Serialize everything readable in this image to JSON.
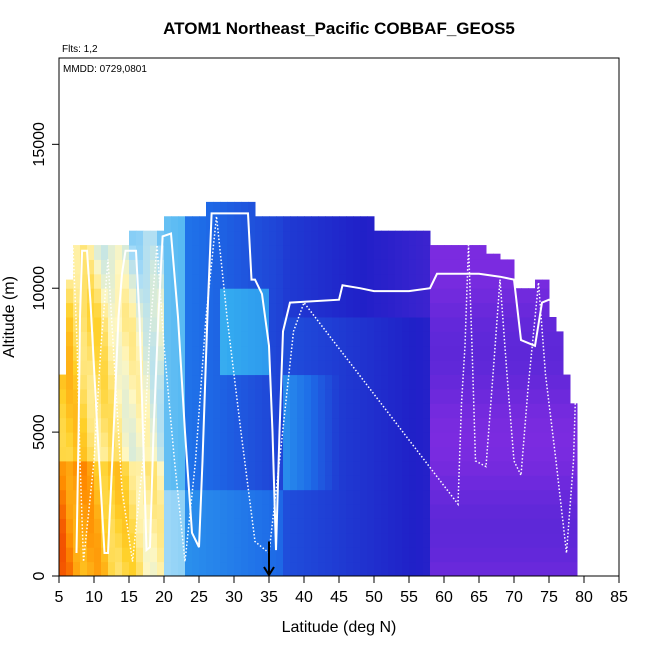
{
  "chart_data": {
    "type": "heatmap",
    "title": "ATOM1 Northeast_Pacific COBBAF_GEOS5",
    "subtitle_flights": "Flts: 1,2",
    "subtitle_dates": "MMDD: 0729,0801",
    "xlabel": "Latitude (deg N)",
    "ylabel": "Altitude (m)",
    "xlim": [
      5,
      85
    ],
    "ylim": [
      0,
      18000
    ],
    "xticks": [
      5,
      10,
      15,
      20,
      25,
      30,
      35,
      40,
      45,
      50,
      55,
      60,
      65,
      70,
      75,
      80,
      85
    ],
    "yticks": [
      0,
      5000,
      10000,
      15000
    ],
    "arrow_marker_latitude": 35,
    "color_scale": [
      "#7b2be0",
      "#2020c8",
      "#1e6ee8",
      "#33aaf0",
      "#a8dcf8",
      "#fff7c0",
      "#ffd028",
      "#ff8c00",
      "#e81c00"
    ],
    "profile_column_tops": [
      {
        "lat_range": [
          5,
          6
        ],
        "top": 7000
      },
      {
        "lat_range": [
          6,
          7
        ],
        "top": 10300
      },
      {
        "lat_range": [
          7,
          14
        ],
        "top": 11500
      },
      {
        "lat_range": [
          14,
          15
        ],
        "top": 11500
      },
      {
        "lat_range": [
          15,
          18
        ],
        "top": 12000
      },
      {
        "lat_range": [
          18,
          20
        ],
        "top": 12000
      },
      {
        "lat_range": [
          20,
          26
        ],
        "top": 12500
      },
      {
        "lat_range": [
          26,
          33
        ],
        "top": 13000
      },
      {
        "lat_range": [
          33,
          37
        ],
        "top": 12500
      },
      {
        "lat_range": [
          37,
          40
        ],
        "top": 12500
      },
      {
        "lat_range": [
          40,
          50
        ],
        "top": 12500
      },
      {
        "lat_range": [
          50,
          58
        ],
        "top": 12000
      },
      {
        "lat_range": [
          58,
          66
        ],
        "top": 11500
      },
      {
        "lat_range": [
          66,
          68
        ],
        "top": 11200
      },
      {
        "lat_range": [
          68,
          70
        ],
        "top": 11000
      },
      {
        "lat_range": [
          70,
          73
        ],
        "top": 10000
      },
      {
        "lat_range": [
          73,
          75
        ],
        "top": 10300
      },
      {
        "lat_range": [
          75,
          76
        ],
        "top": 9000
      },
      {
        "lat_range": [
          76,
          77
        ],
        "top": 8500
      },
      {
        "lat_range": [
          77,
          78
        ],
        "top": 7000
      },
      {
        "lat_range": [
          78,
          79
        ],
        "top": 6000
      }
    ],
    "flight_track_solid": [
      [
        7.5,
        800
      ],
      [
        7.8,
        5000
      ],
      [
        8.0,
        9000
      ],
      [
        8.3,
        11300
      ],
      [
        9.0,
        11300
      ],
      [
        9.5,
        9500
      ],
      [
        10.5,
        5000
      ],
      [
        11.5,
        800
      ],
      [
        12.0,
        800
      ],
      [
        12.8,
        5000
      ],
      [
        13.5,
        9000
      ],
      [
        14.0,
        10500
      ],
      [
        14.5,
        11300
      ],
      [
        16.0,
        11300
      ],
      [
        16.5,
        9000
      ],
      [
        17.0,
        5000
      ],
      [
        17.5,
        900
      ],
      [
        18.0,
        1000
      ],
      [
        18.5,
        5000
      ],
      [
        19.2,
        9000
      ],
      [
        19.8,
        11800
      ],
      [
        21.0,
        11900
      ],
      [
        22.0,
        9000
      ],
      [
        23.0,
        5000
      ],
      [
        24.0,
        1500
      ],
      [
        25.0,
        1000
      ],
      [
        25.5,
        4000
      ],
      [
        26.2,
        9000
      ],
      [
        26.8,
        12600
      ],
      [
        32.0,
        12600
      ],
      [
        32.5,
        10300
      ],
      [
        33.0,
        10300
      ],
      [
        34.0,
        9800
      ],
      [
        35.0,
        8000
      ],
      [
        35.5,
        5000
      ],
      [
        36.0,
        900
      ],
      [
        36.5,
        5000
      ],
      [
        37.0,
        8500
      ],
      [
        38.0,
        9500
      ],
      [
        45.0,
        9600
      ],
      [
        45.5,
        10100
      ],
      [
        48.0,
        10000
      ],
      [
        50.0,
        9900
      ],
      [
        55.0,
        9900
      ],
      [
        58.0,
        10000
      ],
      [
        59.0,
        10500
      ],
      [
        61.0,
        10500
      ],
      [
        65.0,
        10500
      ],
      [
        68.0,
        10400
      ],
      [
        70.0,
        10300
      ],
      [
        71.0,
        8200
      ],
      [
        73.0,
        8000
      ],
      [
        74.0,
        9500
      ],
      [
        75.0,
        9600
      ],
      [
        76.0,
        9500
      ],
      [
        78.0,
        9800
      ],
      [
        79.0,
        9700
      ]
    ],
    "flight_track_dotted": [
      [
        7.0,
        11400
      ],
      [
        7.6,
        8000
      ],
      [
        8.0,
        4000
      ],
      [
        8.5,
        500
      ],
      [
        10.0,
        4000
      ],
      [
        11.0,
        8000
      ],
      [
        12.0,
        11000
      ],
      [
        13.0,
        7000
      ],
      [
        14.0,
        3000
      ],
      [
        15.5,
        500
      ],
      [
        17.0,
        4000
      ],
      [
        18.0,
        8500
      ],
      [
        19.0,
        11500
      ],
      [
        20.0,
        8000
      ],
      [
        21.5,
        4000
      ],
      [
        23.0,
        500
      ],
      [
        24.5,
        4000
      ],
      [
        26.0,
        9000
      ],
      [
        27.5,
        12500
      ],
      [
        29.0,
        9000
      ],
      [
        31.0,
        5000
      ],
      [
        33.0,
        1200
      ],
      [
        35.0,
        800
      ],
      [
        36.5,
        4000
      ],
      [
        38.5,
        8500
      ],
      [
        40.0,
        9500
      ],
      [
        62.0,
        2500
      ],
      [
        62.5,
        6000
      ],
      [
        63.0,
        8000
      ],
      [
        63.5,
        11500
      ],
      [
        64.0,
        8000
      ],
      [
        64.5,
        4000
      ],
      [
        66.0,
        3800
      ],
      [
        67.0,
        7000
      ],
      [
        68.0,
        10300
      ],
      [
        69.0,
        7000
      ],
      [
        70.0,
        4000
      ],
      [
        71.0,
        3500
      ],
      [
        72.0,
        6500
      ],
      [
        73.5,
        10200
      ],
      [
        74.5,
        7000
      ],
      [
        76.0,
        4000
      ],
      [
        77.5,
        800
      ],
      [
        78.5,
        4000
      ],
      [
        79.0,
        8000
      ]
    ]
  }
}
